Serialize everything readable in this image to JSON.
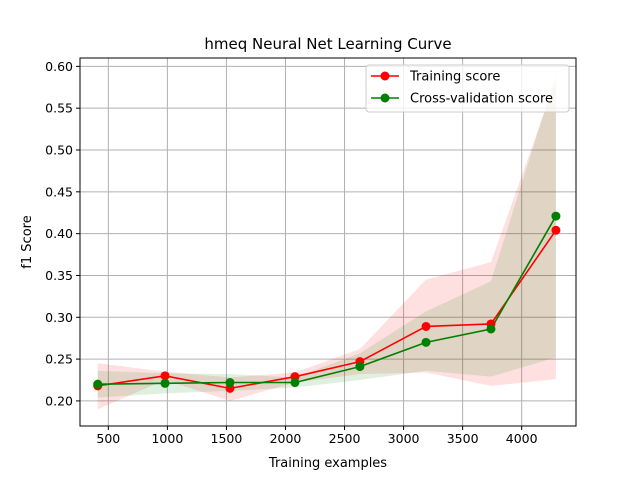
{
  "chart_data": {
    "type": "line",
    "title": "hmeq Neural Net Learning Curve",
    "xlabel": "Training examples",
    "ylabel": "f1 Score",
    "xlim": [
      260,
      4460
    ],
    "ylim": [
      0.17,
      0.61
    ],
    "xticks": [
      500,
      1000,
      1500,
      2000,
      2500,
      3000,
      3500,
      4000
    ],
    "yticks": [
      0.2,
      0.25,
      0.3,
      0.35,
      0.4,
      0.45,
      0.5,
      0.55,
      0.6
    ],
    "grid": true,
    "legend_position": "top-right",
    "x": [
      410,
      980,
      1530,
      2080,
      2630,
      3190,
      3740,
      4290
    ],
    "series": [
      {
        "name": "Training score",
        "color": "#ff0000",
        "band_color": "#ff0000",
        "values": [
          0.218,
          0.23,
          0.215,
          0.229,
          0.247,
          0.289,
          0.292,
          0.404
        ],
        "upper": [
          0.245,
          0.235,
          0.228,
          0.234,
          0.262,
          0.345,
          0.366,
          0.584
        ],
        "lower": [
          0.19,
          0.225,
          0.2,
          0.222,
          0.232,
          0.234,
          0.218,
          0.226
        ]
      },
      {
        "name": "Cross-validation score",
        "color": "#008000",
        "band_color": "#008000",
        "values": [
          0.22,
          0.221,
          0.222,
          0.222,
          0.241,
          0.27,
          0.286,
          0.421
        ],
        "upper": [
          0.236,
          0.233,
          0.232,
          0.228,
          0.257,
          0.307,
          0.343,
          0.59
        ],
        "lower": [
          0.204,
          0.209,
          0.212,
          0.216,
          0.225,
          0.236,
          0.229,
          0.252
        ]
      }
    ]
  }
}
